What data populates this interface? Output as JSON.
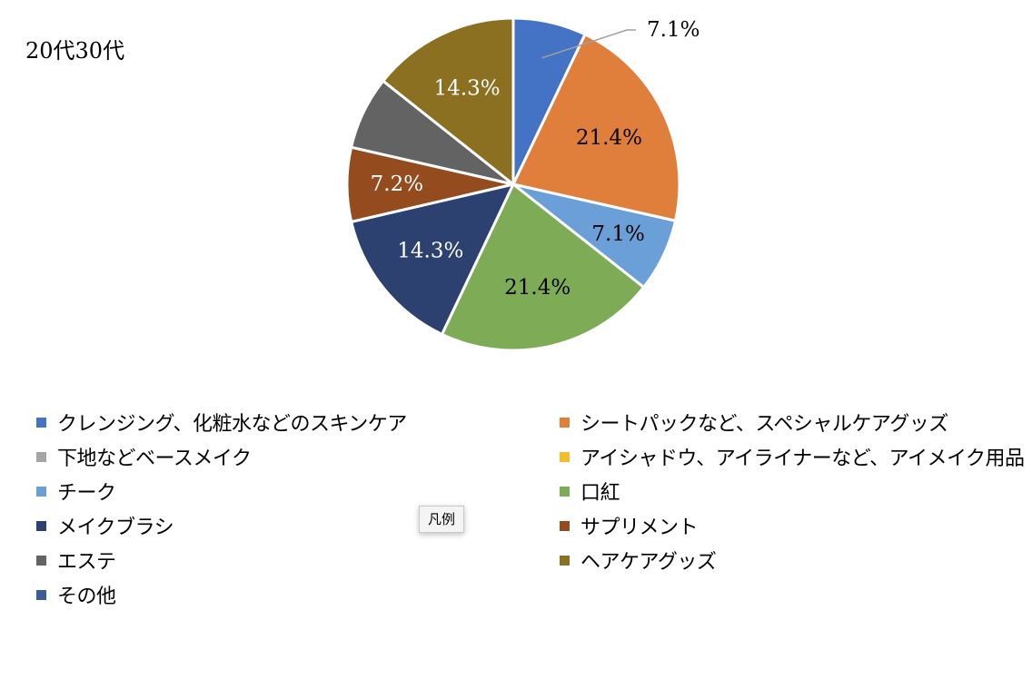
{
  "chart_data": {
    "type": "pie",
    "title": "20代30代",
    "categories": [
      "クレンジング、化粧水などのスキンケア",
      "シートパックなど、スペシャルケアグッズ",
      "下地などベースメイク",
      "アイシャドウ、アイライナーなど、アイメイク用品",
      "チーク",
      "口紅",
      "メイクブラシ",
      "サプリメント",
      "エステ",
      "ヘアケアグッズ",
      "その他"
    ],
    "values": [
      7.1,
      21.4,
      0,
      0,
      7.1,
      21.4,
      14.3,
      7.2,
      7.1,
      14.3,
      0
    ],
    "data_labels": [
      "7.1%",
      "21.4%",
      "",
      "",
      "7.1%",
      "21.4%",
      "14.3%",
      "7.2%",
      "",
      "14.3%",
      ""
    ],
    "colors": [
      "#4472c4",
      "#e07e3c",
      "#a5a5a5",
      "#f2bf2c",
      "#6a9fd8",
      "#7eab55",
      "#2d4170",
      "#944c1f",
      "#636363",
      "#8b7022",
      "#3a5d96"
    ],
    "label_colors": [
      "#000000",
      "#000000",
      "#000000",
      "#000000",
      "#000000",
      "#000000",
      "#ffffff",
      "#ffffff",
      "#ffffff",
      "#ffffff",
      "#ffffff"
    ],
    "legend_position": "bottom",
    "legend_tooltip": "凡例"
  }
}
